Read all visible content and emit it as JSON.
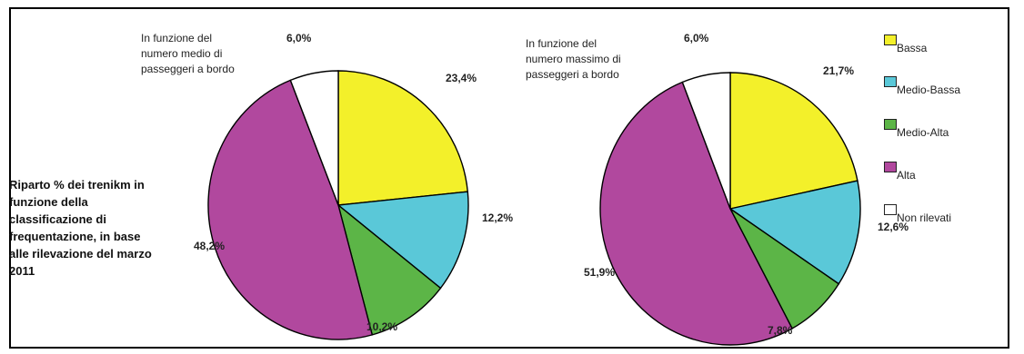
{
  "side_note": "Riparto % dei trenikm in funzione della classificazione di frequentazione, in base alle rilevazione del marzo 2011",
  "colors": {
    "Bassa": "#f3f02a",
    "Medio-Bassa": "#5ac8d8",
    "Medio-Alta": "#5cb547",
    "Alta": "#b1489e",
    "Non rilevati": "#ffffff"
  },
  "legend": [
    "Bassa",
    "Medio-Bassa",
    "Medio-Alta",
    "Alta",
    "Non rilevati"
  ],
  "chart_data": [
    {
      "type": "pie",
      "title": "In funzione del numero medio di passeggeri a bordo",
      "categories": [
        "Bassa",
        "Medio-Bassa",
        "Medio-Alta",
        "Alta",
        "Non rilevati"
      ],
      "values": [
        23.4,
        12.2,
        10.2,
        48.2,
        6.0
      ],
      "labels": [
        "23,4%",
        "12,2%",
        "10,2%",
        "48,2%",
        "6,0%"
      ]
    },
    {
      "type": "pie",
      "title": "In funzione del numero massimo di passeggeri a bordo",
      "categories": [
        "Bassa",
        "Medio-Bassa",
        "Medio-Alta",
        "Alta",
        "Non rilevati"
      ],
      "values": [
        21.7,
        12.6,
        7.8,
        51.9,
        6.0
      ],
      "labels": [
        "21,7%",
        "12,6%",
        "7,8%",
        "51,9%",
        "6,0%"
      ]
    }
  ]
}
